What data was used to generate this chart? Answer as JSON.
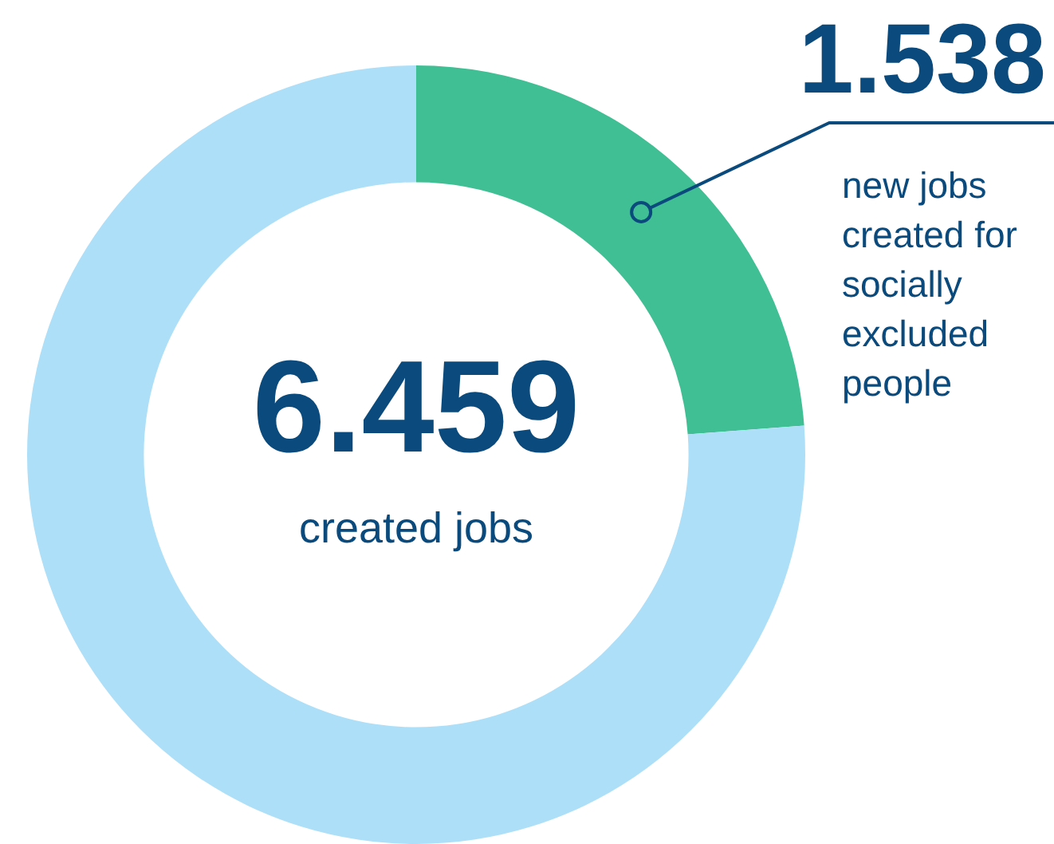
{
  "chart_data": {
    "type": "donut",
    "categories": [
      "new jobs created for socially excluded people",
      null
    ],
    "values": [
      1538,
      4921
    ],
    "value_labels": [
      "1.538",
      null
    ],
    "colors": [
      "#40bf94",
      "#addff8"
    ],
    "annotations": [
      "6.459",
      "created jobs"
    ]
  }
}
